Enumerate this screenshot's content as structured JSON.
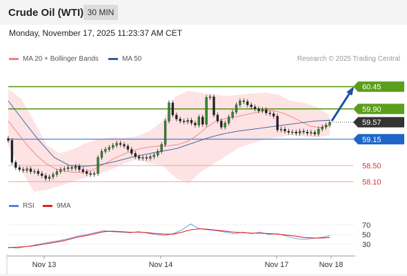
{
  "header": {
    "title": "Crude Oil (WTI)",
    "timeframe": "30 MIN",
    "timestamp": "Monday, November 17, 2025 11:23:37 AM CET",
    "source": "Research © 2025 Trading Central"
  },
  "legend": {
    "ma20_label": "MA 20 + Bollinger Bands",
    "ma20_color": "#f08080",
    "ma50_label": "MA 50",
    "ma50_color": "#2f5a9e"
  },
  "rsi_legend": {
    "rsi_label": "RSI",
    "rsi_color": "#5b7fd4",
    "ma_label": "9MA",
    "ma_color": "#e02020"
  },
  "chart_data": [
    {
      "type": "candlestick",
      "x_labels": [
        "Nov 13",
        "Nov 14",
        "Nov 17",
        "Nov 18"
      ],
      "y_range": [
        57.85,
        60.75
      ],
      "grid": false,
      "levels": [
        {
          "value": 60.45,
          "label": "60.45",
          "kind": "resistance",
          "color": "#5a9e1a"
        },
        {
          "value": 59.9,
          "label": "59.90",
          "kind": "resistance",
          "color": "#5a9e1a"
        },
        {
          "value": 59.57,
          "label": "59.57",
          "kind": "last_price",
          "color": "#333333"
        },
        {
          "value": 59.15,
          "label": "59.15",
          "kind": "pivot",
          "color": "#1f64c8"
        },
        {
          "value": 58.5,
          "label": "58.50",
          "kind": "support",
          "color": "#e03030"
        },
        {
          "value": 58.1,
          "label": "58.10",
          "kind": "support",
          "color": "#e03030"
        }
      ],
      "close_path": [
        59.12,
        58.58,
        58.45,
        58.4,
        58.38,
        58.42,
        58.35,
        58.36,
        58.3,
        58.25,
        58.18,
        58.22,
        58.28,
        58.35,
        58.4,
        58.42,
        58.45,
        58.43,
        58.48,
        58.4,
        58.35,
        58.3,
        58.28,
        58.3,
        58.7,
        58.85,
        58.9,
        58.95,
        59.0,
        59.05,
        59.02,
        58.98,
        58.9,
        58.8,
        58.72,
        58.68,
        58.7,
        58.68,
        58.72,
        58.76,
        58.85,
        59.02,
        59.6,
        60.05,
        59.75,
        59.65,
        59.6,
        59.58,
        59.62,
        59.55,
        59.5,
        59.7,
        59.52,
        60.18,
        60.2,
        59.75,
        59.6,
        59.45,
        59.55,
        59.7,
        59.82,
        60.0,
        60.1,
        60.08,
        60.0,
        59.95,
        59.9,
        59.85,
        59.88,
        59.8,
        59.78,
        59.72,
        59.38,
        59.4,
        59.35,
        59.32,
        59.33,
        59.3,
        59.35,
        59.33,
        59.3,
        59.32,
        59.28,
        59.4,
        59.45,
        59.5,
        59.57
      ],
      "ma20": [
        59.6,
        59.3,
        59.0,
        58.75,
        58.55,
        58.42,
        58.36,
        58.33,
        58.34,
        58.4,
        58.52,
        58.65,
        58.76,
        58.85,
        58.92,
        58.96,
        58.98,
        58.99,
        59.02,
        59.1,
        59.25,
        59.45,
        59.6,
        59.66,
        59.7,
        59.75,
        59.8,
        59.85,
        59.86,
        59.8,
        59.7,
        59.58,
        59.47,
        59.44,
        59.5
      ],
      "ma50": [
        60.1,
        59.6,
        59.12,
        58.7,
        58.5,
        58.48,
        58.52,
        58.6,
        58.7,
        58.78,
        58.85,
        58.92,
        59.05,
        59.18,
        59.28,
        59.35,
        59.4,
        59.45,
        59.5,
        59.55,
        59.6,
        59.62
      ],
      "bb_upper": [
        60.4,
        60.15,
        59.6,
        59.0,
        58.8,
        58.9,
        59.05,
        59.15,
        59.2,
        59.18,
        59.22,
        59.35,
        59.6,
        60.2,
        60.35,
        60.3,
        60.25,
        60.22,
        60.25,
        60.28,
        60.3,
        60.25,
        60.1,
        60.05,
        59.95,
        59.75
      ],
      "bb_lower": [
        59.0,
        58.4,
        57.85,
        57.9,
        58.0,
        58.1,
        58.2,
        58.3,
        58.4,
        58.55,
        58.65,
        58.55,
        58.5,
        58.2,
        58.05,
        58.35,
        58.55,
        58.75,
        58.95,
        59.05,
        59.15,
        59.2,
        59.25,
        59.22,
        59.2,
        59.25
      ],
      "projection": {
        "from": 59.57,
        "to": 60.45,
        "direction": "up"
      }
    },
    {
      "type": "line",
      "y_ticks": [
        70,
        50,
        30
      ],
      "ylim": [
        10,
        90
      ],
      "series": [
        {
          "name": "RSI",
          "values": [
            24,
            22,
            25,
            28,
            32,
            35,
            38,
            42,
            47,
            50,
            54,
            58,
            56,
            55,
            54,
            56,
            53,
            50,
            48,
            52,
            60,
            72,
            62,
            60,
            58,
            55,
            52,
            55,
            52,
            55,
            50,
            52,
            47,
            42,
            40,
            42,
            44,
            48
          ]
        },
        {
          "name": "9MA",
          "values": [
            23,
            24,
            25,
            27,
            30,
            33,
            36,
            40,
            45,
            48,
            52,
            56,
            57,
            56,
            55,
            55,
            54,
            52,
            51,
            51,
            55,
            60,
            62,
            61,
            59,
            57,
            55,
            54,
            53,
            53,
            52,
            51,
            49,
            47,
            44,
            43,
            43,
            44
          ]
        }
      ]
    }
  ]
}
